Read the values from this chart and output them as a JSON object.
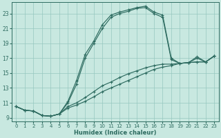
{
  "xlabel": "Humidex (Indice chaleur)",
  "bg_color": "#c8e8e0",
  "grid_color": "#96c8c0",
  "line_color": "#2d6b60",
  "xlim": [
    -0.5,
    23.5
  ],
  "ylim": [
    8.5,
    24.5
  ],
  "xticks": [
    0,
    1,
    2,
    3,
    4,
    5,
    6,
    7,
    8,
    9,
    10,
    11,
    12,
    13,
    14,
    15,
    16,
    17,
    18,
    19,
    20,
    21,
    22,
    23
  ],
  "yticks": [
    9,
    11,
    13,
    15,
    17,
    19,
    21,
    23
  ],
  "series": [
    {
      "x": [
        0,
        1,
        2,
        3,
        4,
        5,
        6,
        7,
        8,
        9,
        10,
        11,
        12,
        13,
        14,
        15,
        16,
        17,
        18,
        19,
        20,
        21,
        22,
        23
      ],
      "y": [
        10.5,
        10.0,
        9.9,
        9.3,
        9.2,
        9.5,
        11.2,
        14.0,
        17.5,
        19.3,
        21.5,
        22.8,
        23.2,
        23.5,
        23.8,
        24.0,
        23.2,
        22.8,
        17.0,
        16.3,
        16.4,
        17.0,
        16.5,
        17.3
      ]
    },
    {
      "x": [
        0,
        1,
        2,
        3,
        4,
        5,
        6,
        7,
        8,
        9,
        10,
        11,
        12,
        13,
        14,
        15,
        16,
        17,
        18,
        19,
        20,
        21,
        22,
        23
      ],
      "y": [
        10.5,
        10.0,
        9.9,
        9.3,
        9.2,
        9.5,
        10.3,
        10.7,
        11.2,
        11.8,
        12.5,
        13.0,
        13.5,
        14.0,
        14.5,
        15.0,
        15.5,
        15.8,
        16.0,
        16.3,
        16.4,
        16.5,
        16.5,
        17.3
      ]
    },
    {
      "x": [
        0,
        1,
        2,
        3,
        4,
        5,
        6,
        7,
        8,
        9,
        10,
        11,
        12,
        13,
        14,
        15,
        16,
        17,
        18,
        19,
        20,
        21,
        22,
        23
      ],
      "y": [
        10.5,
        10.0,
        9.9,
        9.3,
        9.2,
        9.5,
        10.5,
        11.0,
        11.7,
        12.5,
        13.3,
        13.8,
        14.4,
        14.9,
        15.3,
        15.7,
        16.0,
        16.2,
        16.2,
        16.3,
        16.4,
        16.5,
        16.5,
        17.3
      ]
    },
    {
      "x": [
        0,
        1,
        2,
        3,
        4,
        5,
        6,
        7,
        8,
        9,
        10,
        11,
        12,
        13,
        14,
        15,
        16,
        17,
        18,
        19,
        20,
        21,
        22,
        23
      ],
      "y": [
        10.5,
        10.0,
        9.9,
        9.3,
        9.2,
        9.5,
        11.0,
        13.5,
        17.0,
        19.0,
        21.0,
        22.5,
        23.0,
        23.3,
        23.7,
        23.8,
        23.0,
        22.5,
        16.8,
        16.3,
        16.4,
        17.2,
        16.5,
        17.3
      ]
    }
  ]
}
